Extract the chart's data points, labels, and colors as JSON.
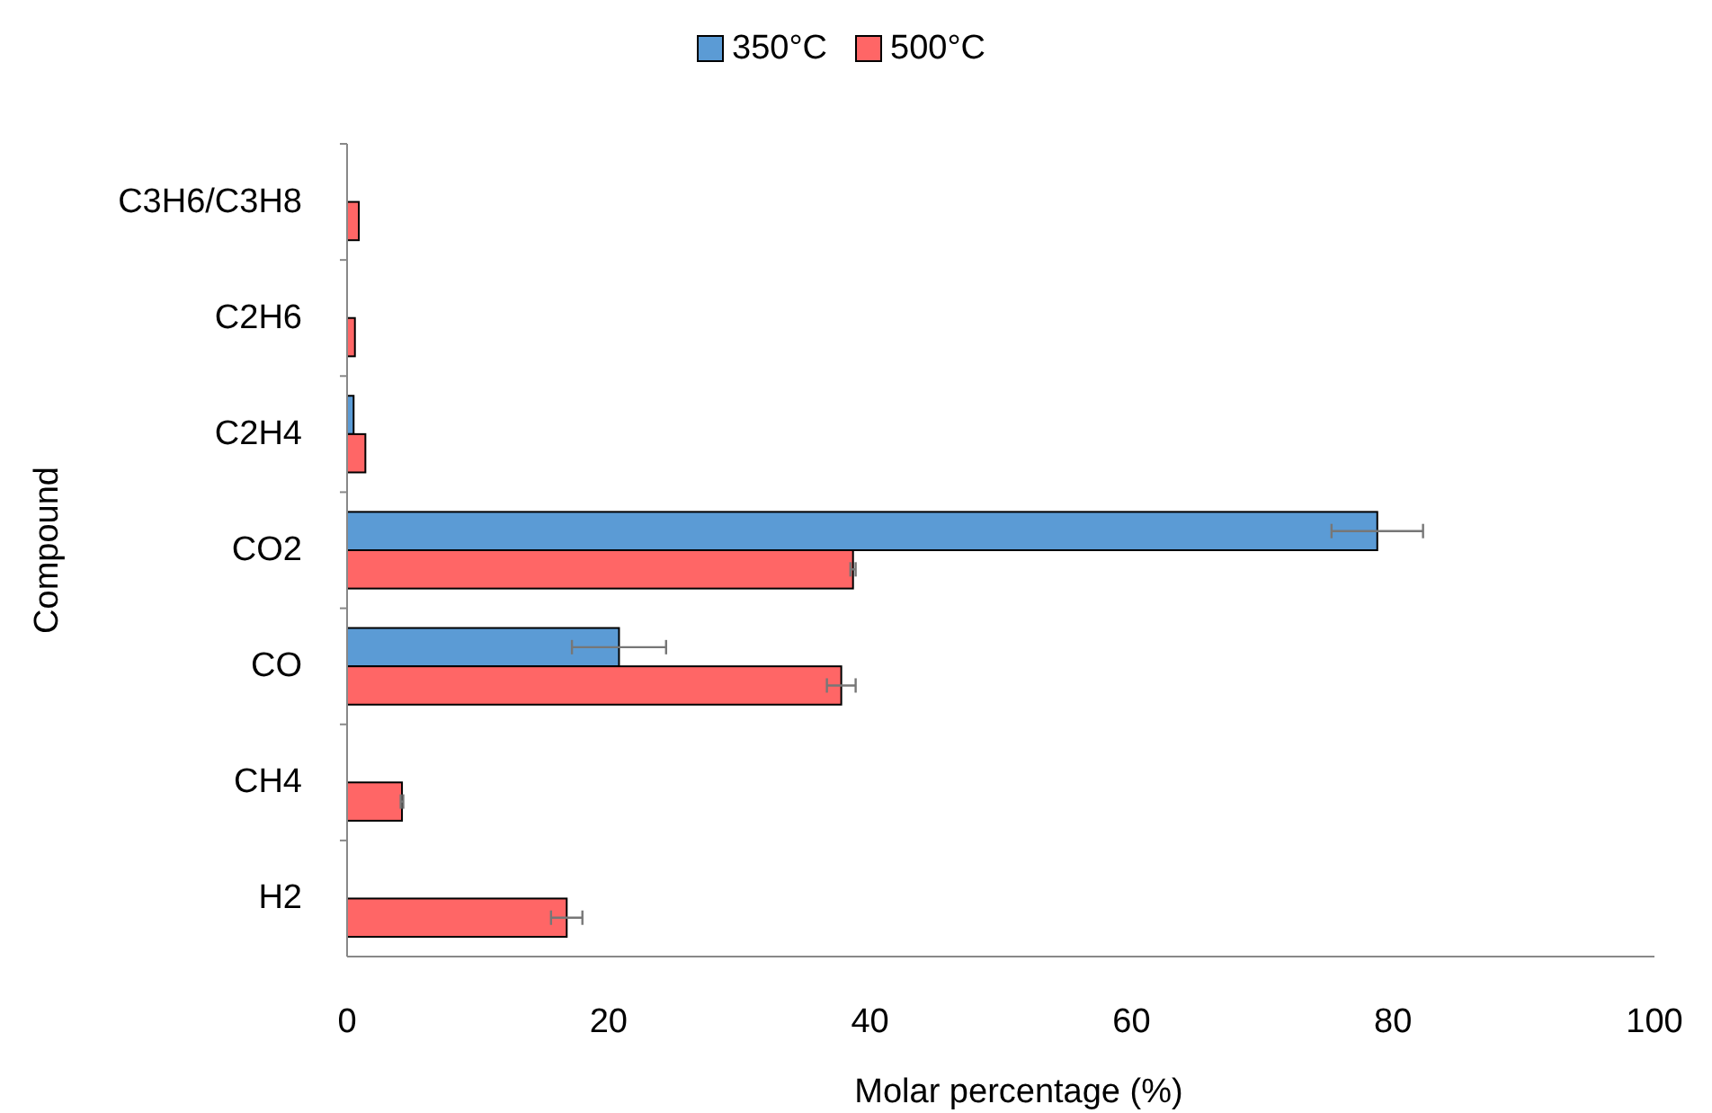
{
  "chart_data": {
    "type": "bar",
    "orientation": "horizontal",
    "xlabel": "Molar percentage (%)",
    "ylabel": "Compound",
    "categories": [
      "C3H6/C3H8",
      "C2H6",
      "C2H4",
      "CO2",
      "CO",
      "CH4",
      "H2"
    ],
    "xlim": [
      0,
      100
    ],
    "xticks": [
      0,
      20,
      40,
      60,
      80,
      100
    ],
    "grid": false,
    "legend": "top",
    "series": [
      {
        "name": "350°C",
        "color": "#5b9bd5",
        "values": [
          0,
          0,
          0.5,
          78.8,
          20.8,
          0,
          0
        ],
        "errors": [
          null,
          null,
          null,
          3.5,
          3.6,
          null,
          null
        ]
      },
      {
        "name": "500°C",
        "color": "#ff6666",
        "values": [
          0.9,
          0.6,
          1.4,
          38.7,
          37.8,
          4.2,
          16.8
        ],
        "errors": [
          null,
          null,
          null,
          0.2,
          1.1,
          0.1,
          1.2
        ]
      }
    ]
  }
}
